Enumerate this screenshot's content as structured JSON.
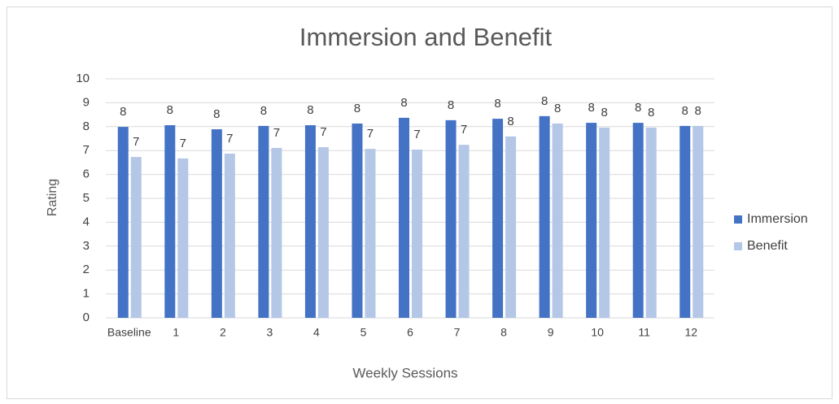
{
  "chart_data": {
    "type": "bar",
    "title": "Immersion and Benefit",
    "x_label": "Weekly Sessions",
    "y_label": "Rating",
    "categories": [
      "Baseline",
      "1",
      "2",
      "3",
      "4",
      "5",
      "6",
      "7",
      "8",
      "9",
      "10",
      "11",
      "12"
    ],
    "series": [
      {
        "name": "Immersion",
        "color": "#4472c4",
        "values": [
          7.99,
          8.06,
          7.89,
          8.03,
          8.06,
          8.13,
          8.37,
          8.27,
          8.33,
          8.44,
          8.16,
          8.16,
          8.03
        ],
        "value_labels": [
          "8",
          "8",
          "8",
          "8",
          "8",
          "8",
          "8",
          "8",
          "8",
          "8",
          "8",
          "8",
          "8"
        ]
      },
      {
        "name": "Benefit",
        "color": "#b4c7e7",
        "values": [
          6.73,
          6.67,
          6.87,
          7.11,
          7.14,
          7.07,
          7.04,
          7.24,
          7.59,
          8.13,
          7.96,
          7.96,
          8.03
        ],
        "value_labels": [
          "7",
          "7",
          "7",
          "7",
          "7",
          "7",
          "7",
          "7",
          "8",
          "8",
          "8",
          "8",
          "8"
        ]
      }
    ],
    "ylim": [
      0,
      10
    ],
    "yticks": [
      0,
      1,
      2,
      3,
      4,
      5,
      6,
      7,
      8,
      9,
      10
    ],
    "grid": true,
    "legend": "right"
  }
}
